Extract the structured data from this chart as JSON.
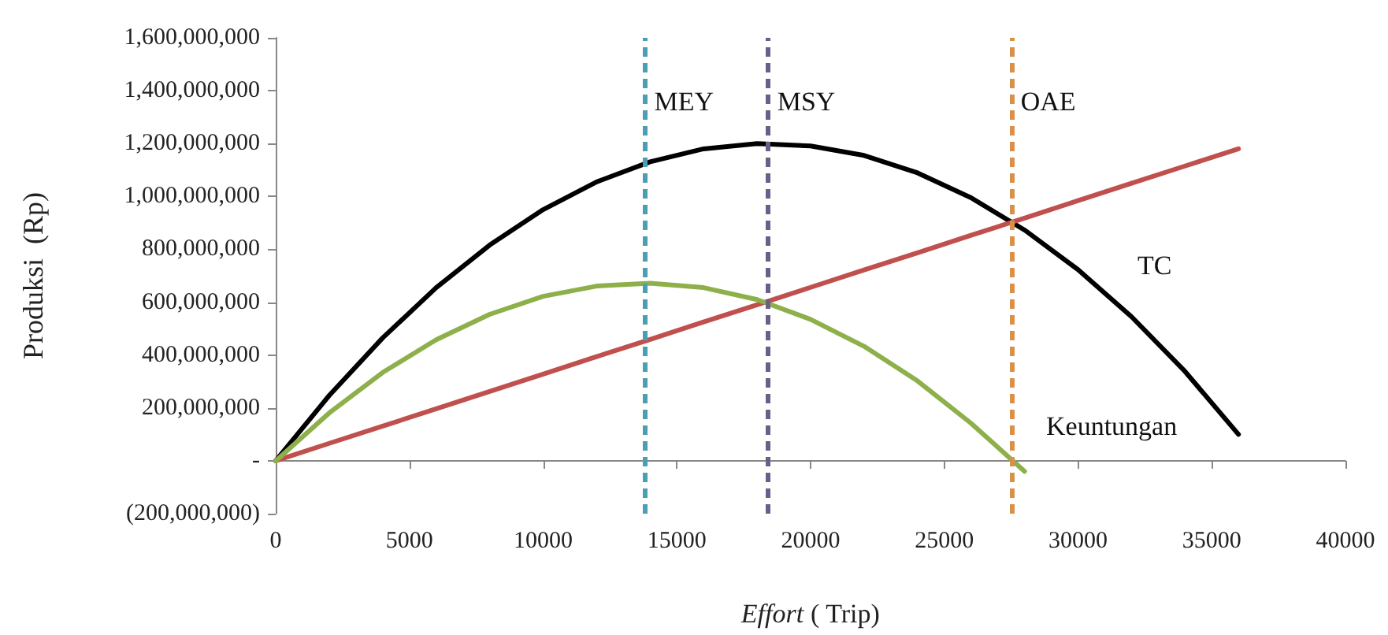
{
  "chart_data": {
    "type": "line",
    "xlabel": "Effort ( Trip)",
    "ylabel": "Produksi  (Rp)",
    "xlim": [
      0,
      40000
    ],
    "xticks": [
      0,
      5000,
      10000,
      15000,
      20000,
      25000,
      30000,
      35000,
      40000
    ],
    "ylim": [
      -200000000,
      1600000000
    ],
    "yticks": [
      {
        "value": -200000000,
        "label": "(200,000,000)"
      },
      {
        "value": 0,
        "label": "-"
      },
      {
        "value": 200000000,
        "label": "200,000,000"
      },
      {
        "value": 400000000,
        "label": "400,000,000"
      },
      {
        "value": 600000000,
        "label": "600,000,000"
      },
      {
        "value": 800000000,
        "label": "800,000,000"
      },
      {
        "value": 1000000000,
        "label": "1,000,000,000"
      },
      {
        "value": 1200000000,
        "label": "1,200,000,000"
      },
      {
        "value": 1400000000,
        "label": "1,400,000,000"
      },
      {
        "value": 1600000000,
        "label": "1,600,000,000"
      }
    ],
    "x": [
      0,
      2000,
      4000,
      6000,
      8000,
      10000,
      12000,
      14000,
      16000,
      18000,
      20000,
      22000,
      24000,
      26000,
      28000,
      30000,
      32000,
      34000,
      36000
    ],
    "series": [
      {
        "color": "#000000",
        "values": [
          0,
          247000000,
          465000000,
          655000000,
          816000000,
          950000000,
          1055000000,
          1131000000,
          1180000000,
          1200000000,
          1191000000,
          1155000000,
          1089000000,
          995000000,
          873000000,
          723000000,
          545000000,
          338000000,
          100000000
        ]
      },
      {
        "color": "#c0504d",
        "values": [
          0,
          66000000,
          131000000,
          197000000,
          262000000,
          328000000,
          394000000,
          459000000,
          525000000,
          590000000,
          656000000,
          722000000,
          787000000,
          853000000,
          918000000,
          984000000,
          1050000000,
          1115000000,
          1180000000
        ]
      },
      {
        "color": "#8db04a",
        "values": [
          0,
          181000000,
          334000000,
          458000000,
          554000000,
          622000000,
          661000000,
          672000000,
          655000000,
          610000000,
          535000000,
          433000000,
          302000000,
          142000000,
          -40000000,
          null,
          null,
          null,
          null
        ]
      }
    ],
    "ref_lines": [
      {
        "axis": "x",
        "value": 13800,
        "label": "MEY",
        "color": "#4b9fb5",
        "line_style": "dashed"
      },
      {
        "axis": "x",
        "value": 18400,
        "label": "MSY",
        "color": "#6b5f8a",
        "line_style": "dashed"
      },
      {
        "axis": "x",
        "value": 27500,
        "label": "OAE",
        "color": "#d9914a",
        "line_style": "dashed"
      }
    ],
    "annotations": [
      "TC",
      "Keuntungan"
    ],
    "marker": "none",
    "line_style": "solid"
  }
}
